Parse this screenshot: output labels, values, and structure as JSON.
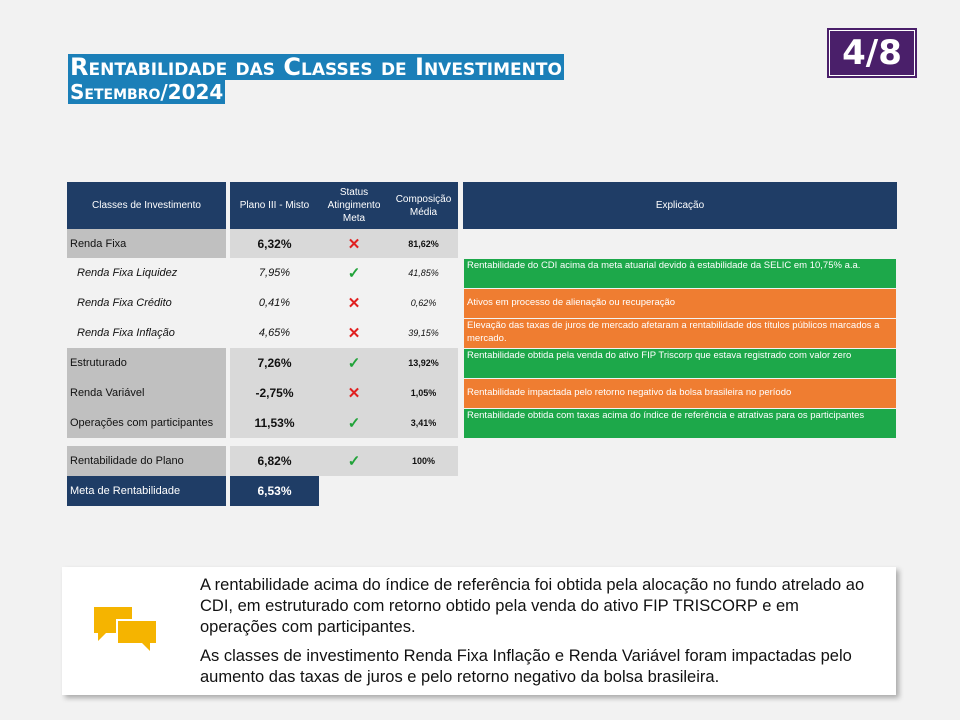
{
  "title": {
    "line1": "Rentabilidade das Classes de Investimento",
    "line2": "Setembro/2024"
  },
  "page_badge": "4/8",
  "headers": {
    "classes": "Classes de Investimento",
    "plano": "Plano III - Misto",
    "status": "Status Atingimento Meta",
    "composicao": "Composição Média",
    "explicacao": "Explicação"
  },
  "rows": [
    {
      "label": "Renda Fixa",
      "value": "6,32%",
      "status": "✕",
      "composicao": "81,62%",
      "explicacao": ""
    },
    {
      "label": "Renda Fixa Liquidez",
      "value": "7,95%",
      "status": "✓",
      "composicao": "41,85%",
      "explicacao": "Rentabilidade do CDI acima da meta atuarial devido à estabilidade da SELIC em 10,75% a.a."
    },
    {
      "label": "Renda Fixa Crédito",
      "value": "0,41%",
      "status": "✕",
      "composicao": "0,62%",
      "explicacao": "Ativos em processo de alienação ou recuperação"
    },
    {
      "label": "Renda Fixa Inflação",
      "value": "4,65%",
      "status": "✕",
      "composicao": "39,15%",
      "explicacao": "Elevação das taxas de juros de mercado afetaram a rentabilidade dos títulos públicos marcados a mercado."
    },
    {
      "label": "Estruturado",
      "value": "7,26%",
      "status": "✓",
      "composicao": "13,92%",
      "explicacao": "Rentabilidade obtida pela venda do ativo FIP Triscorp que estava registrado com valor zero"
    },
    {
      "label": "Renda Variável",
      "value": "-2,75%",
      "status": "✕",
      "composicao": "1,05%",
      "explicacao": "Rentabilidade impactada pelo retorno negativo da bolsa brasileira no período"
    },
    {
      "label": "Operações com participantes",
      "value": "11,53%",
      "status": "✓",
      "composicao": "3,41%",
      "explicacao": "Rentabilidade obtida com taxas acima do índice de referência e atrativas para os participantes"
    }
  ],
  "total": {
    "label": "Rentabilidade do Plano",
    "value": "6,82%",
    "status": "✓",
    "composicao": "100%"
  },
  "meta": {
    "label": "Meta de Rentabilidade",
    "value": "6,53%"
  },
  "note": {
    "icon": "chat-bubbles-icon",
    "p1": "A rentabilidade acima do índice de referência foi obtida pela alocação no fundo atrelado ao CDI, em estruturado com retorno obtido pela venda do ativo FIP TRISCORP e em operações com participantes.",
    "p2": "As classes de investimento Renda Fixa Inflação e Renda Variável foram impactadas pelo aumento das taxas de juros e pelo retorno negativo da bolsa brasileira."
  },
  "colors": {
    "navy": "#1f3d66",
    "title_bg": "#1b7fb8",
    "badge": "#4a1f6a",
    "green": "#1da84a",
    "orange": "#ef7d31",
    "ok": "#22a33a",
    "bad": "#e02020"
  }
}
